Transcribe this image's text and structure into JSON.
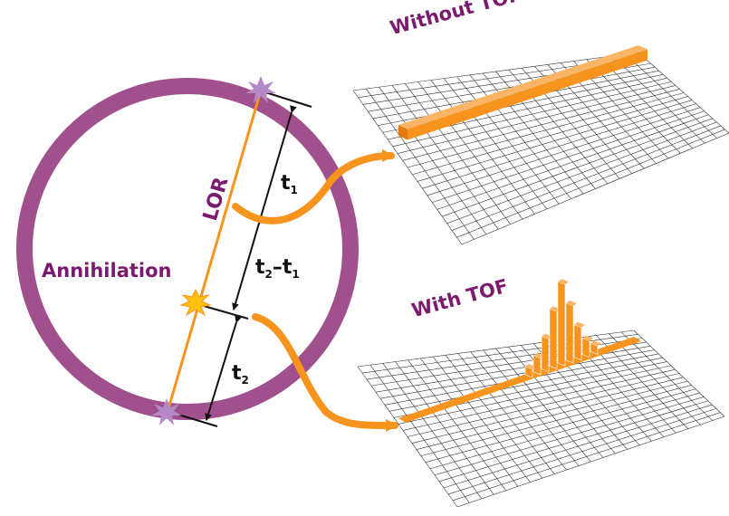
{
  "labels": {
    "without_tof": "Without TOF",
    "with_tof": "With TOF",
    "lor": "LOR",
    "annihilation": "Annihilation",
    "t1_main": "t",
    "t1_sub": "1",
    "diff_a": "t",
    "diff_a_sub": "2",
    "diff_sep": "–t",
    "diff_b_sub": "1",
    "t2_main": "t",
    "t2_sub": "2"
  },
  "colors": {
    "ring": "#a0508c",
    "accent": "#f7941d",
    "text_purple": "#7b1a6e",
    "grid": "#333333"
  },
  "histogram_with_tof": [
    1,
    2,
    4,
    7,
    10,
    7,
    4,
    2,
    1
  ]
}
